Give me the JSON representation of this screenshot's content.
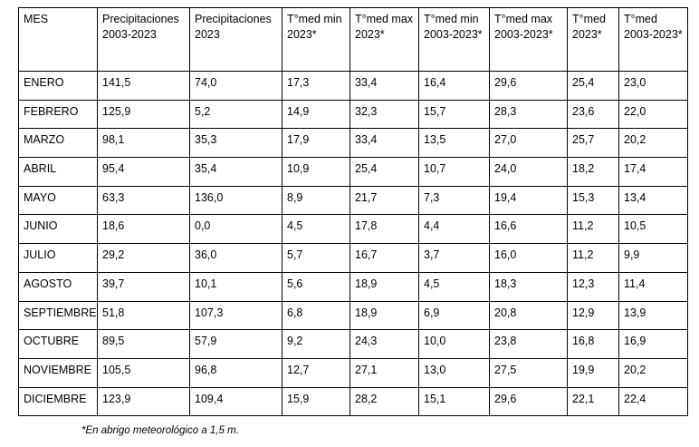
{
  "table": {
    "header": [
      "MES",
      "Precipitaciones 2003-2023",
      "Precipitaciones 2023",
      "T°med min 2023*",
      "T°med max 2023*",
      "T°med min 2003-2023*",
      "T°med max 2003-2023*",
      "T°med 2023*",
      "T°med 2003-2023*"
    ],
    "rows": [
      [
        "ENERO",
        "141,5",
        "74,0",
        "17,3",
        "33,4",
        "16,4",
        "29,6",
        "25,4",
        "23,0"
      ],
      [
        "FEBRERO",
        "125,9",
        "5,2",
        "14,9",
        "32,3",
        "15,7",
        "28,3",
        "23,6",
        "22,0"
      ],
      [
        "MARZO",
        "98,1",
        "35,3",
        "17,9",
        "33,4",
        "13,5",
        "27,0",
        "25,7",
        "20,2"
      ],
      [
        "ABRIL",
        "95,4",
        "35,4",
        "10,9",
        "25,4",
        "10,7",
        "24,0",
        "18,2",
        "17,4"
      ],
      [
        "MAYO",
        "63,3",
        "136,0",
        "8,9",
        "21,7",
        "7,3",
        "19,4",
        "15,3",
        "13,4"
      ],
      [
        "JUNIO",
        "18,6",
        "0,0",
        "4,5",
        "17,8",
        "4,4",
        "16,6",
        "11,2",
        "10,5"
      ],
      [
        "JULIO",
        "29,2",
        "36,0",
        "5,7",
        "16,7",
        "3,7",
        "16,0",
        "11,2",
        "9,9"
      ],
      [
        "AGOSTO",
        "39,7",
        "10,1",
        "5,6",
        "18,9",
        "4,5",
        "18,3",
        "12,3",
        "11,4"
      ],
      [
        "SEPTIEMBRE",
        "51,8",
        "107,3",
        "6,8",
        "18,9",
        "6,9",
        "20,8",
        "12,9",
        "13,9"
      ],
      [
        "OCTUBRE",
        "89,5",
        "57,9",
        "9,2",
        "24,3",
        "10,0",
        "23,8",
        "16,8",
        "16,9"
      ],
      [
        "NOVIEMBRE",
        "105,5",
        "96,8",
        "12,7",
        "27,1",
        "13,0",
        "27,5",
        "19,9",
        "20,2"
      ],
      [
        "DICIEMBRE",
        "123,9",
        "109,4",
        "15,9",
        "28,2",
        "15,1",
        "29,6",
        "22,1",
        "22,4"
      ]
    ]
  },
  "footnote": "*En abrigo meteorológico a 1,5 m."
}
